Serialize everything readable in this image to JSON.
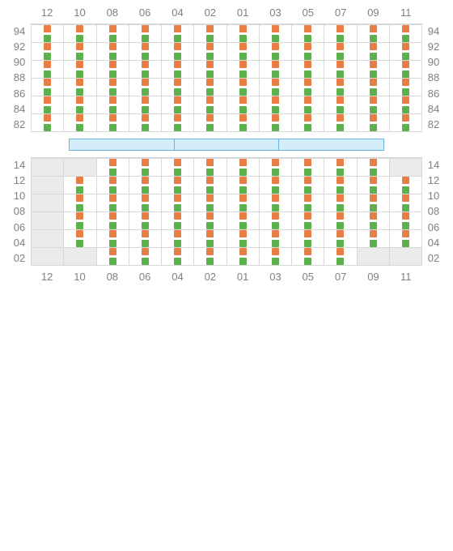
{
  "colors": {
    "empty_bg": "#ebebeb",
    "filled_bg": "#ffffff",
    "grid_line": "#d8d8d8",
    "label_text": "#808080",
    "marker_top": "#e87e45",
    "marker_bottom": "#5cb04d",
    "divider_fill": "#d4edfb",
    "divider_border": "#64b4e5"
  },
  "typography": {
    "label_fontsize": 13
  },
  "columns": [
    "12",
    "10",
    "08",
    "06",
    "04",
    "02",
    "01",
    "03",
    "05",
    "07",
    "09",
    "11"
  ],
  "top_section": {
    "rows": [
      "94",
      "92",
      "90",
      "88",
      "86",
      "84",
      "82"
    ],
    "cells": [
      [
        0,
        0,
        0,
        0,
        0,
        0,
        0,
        0,
        0,
        0,
        0,
        0
      ],
      [
        1,
        1,
        1,
        1,
        1,
        1,
        1,
        1,
        1,
        1,
        1,
        1
      ],
      [
        1,
        1,
        1,
        1,
        1,
        1,
        1,
        1,
        1,
        1,
        1,
        1
      ],
      [
        1,
        1,
        1,
        1,
        1,
        1,
        1,
        1,
        1,
        1,
        1,
        1
      ],
      [
        1,
        1,
        1,
        1,
        1,
        1,
        1,
        1,
        1,
        1,
        1,
        1
      ],
      [
        1,
        1,
        1,
        1,
        1,
        1,
        1,
        1,
        1,
        1,
        1,
        1
      ],
      [
        1,
        1,
        1,
        1,
        1,
        1,
        1,
        1,
        1,
        1,
        1,
        1
      ]
    ]
  },
  "bottom_section": {
    "rows": [
      "14",
      "12",
      "10",
      "08",
      "06",
      "04",
      "02"
    ],
    "cells": [
      [
        0,
        0,
        0,
        0,
        0,
        0,
        0,
        0,
        0,
        0,
        0,
        0
      ],
      [
        0,
        0,
        1,
        1,
        1,
        1,
        1,
        1,
        1,
        1,
        1,
        0
      ],
      [
        0,
        1,
        1,
        1,
        1,
        1,
        1,
        1,
        1,
        1,
        1,
        1
      ],
      [
        0,
        1,
        1,
        1,
        1,
        1,
        1,
        1,
        1,
        1,
        1,
        1
      ],
      [
        0,
        1,
        1,
        1,
        1,
        1,
        1,
        1,
        1,
        1,
        1,
        1
      ],
      [
        0,
        1,
        1,
        1,
        1,
        1,
        1,
        1,
        1,
        1,
        1,
        1
      ],
      [
        0,
        0,
        1,
        1,
        1,
        1,
        1,
        1,
        1,
        1,
        0,
        0
      ]
    ]
  },
  "divider": {
    "segments": 3
  }
}
